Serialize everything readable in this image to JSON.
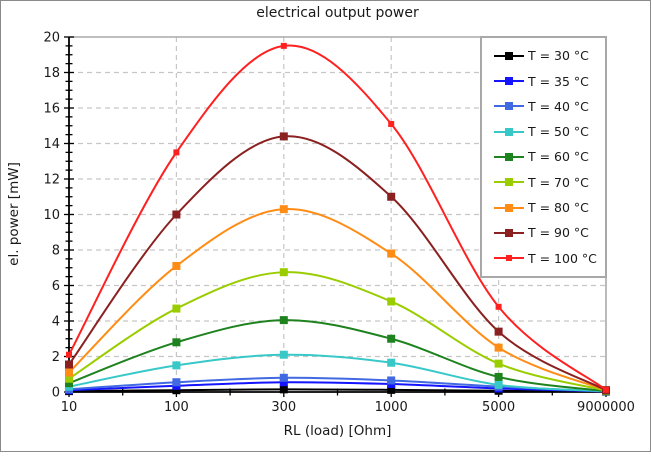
{
  "window": {
    "background": "#ffffff",
    "frame_color": "#8a8a8a",
    "plot_frame_color": "#a8a8a8",
    "axis_color": "#000000",
    "gridline_color": "#c6c6c6",
    "text_color": "#1a1a1a"
  },
  "chart_data": {
    "type": "line",
    "title": "electrical output power",
    "xlabel": "RL (load) [Ohm]",
    "ylabel": "el. power [mW]",
    "x_categories": [
      "10",
      "100",
      "300",
      "1000",
      "5000",
      "9000000"
    ],
    "y_ticks": [
      "0",
      "2",
      "4",
      "6",
      "8",
      "10",
      "12",
      "14",
      "16",
      "18",
      "20"
    ],
    "ylim": [
      0,
      20
    ],
    "y_major_step": 2,
    "y_minor_step": 0.5,
    "grid": "dashed",
    "legend_position": "top-right",
    "series": [
      {
        "name": "T = 30 °C",
        "color": "#000000",
        "marker": "square",
        "marker_size": 8,
        "values": [
          0.05,
          0.1,
          0.15,
          0.12,
          0.07,
          0.02
        ]
      },
      {
        "name": "T = 35 °C",
        "color": "#1414ff",
        "marker": "square",
        "marker_size": 8,
        "values": [
          0.1,
          0.35,
          0.55,
          0.45,
          0.2,
          0.03
        ]
      },
      {
        "name": "T = 40 °C",
        "color": "#4169e1",
        "marker": "square",
        "marker_size": 8,
        "values": [
          0.15,
          0.55,
          0.8,
          0.65,
          0.3,
          0.03
        ]
      },
      {
        "name": "T = 50 °C",
        "color": "#38c8c8",
        "marker": "square",
        "marker_size": 8,
        "values": [
          0.3,
          1.5,
          2.1,
          1.65,
          0.4,
          0.05
        ]
      },
      {
        "name": "T = 60 °C",
        "color": "#1e821e",
        "marker": "square",
        "marker_size": 8,
        "values": [
          0.5,
          2.8,
          4.05,
          3.0,
          0.85,
          0.05
        ]
      },
      {
        "name": "T = 70 °C",
        "color": "#9acd00",
        "marker": "square",
        "marker_size": 8,
        "values": [
          0.75,
          4.7,
          6.75,
          5.1,
          1.6,
          0.08
        ]
      },
      {
        "name": "T = 80 °C",
        "color": "#ff8c14",
        "marker": "square",
        "marker_size": 8,
        "values": [
          1.1,
          7.1,
          10.3,
          7.8,
          2.5,
          0.1
        ]
      },
      {
        "name": "T = 90 °C",
        "color": "#8b2020",
        "marker": "square",
        "marker_size": 8,
        "values": [
          1.55,
          10.0,
          14.4,
          11.0,
          3.4,
          0.1
        ]
      },
      {
        "name": "T = 100 °C",
        "color": "#ff2020",
        "marker": "square",
        "marker_size": 6,
        "values": [
          2.1,
          13.5,
          19.5,
          15.1,
          4.8,
          0.12
        ]
      }
    ]
  }
}
